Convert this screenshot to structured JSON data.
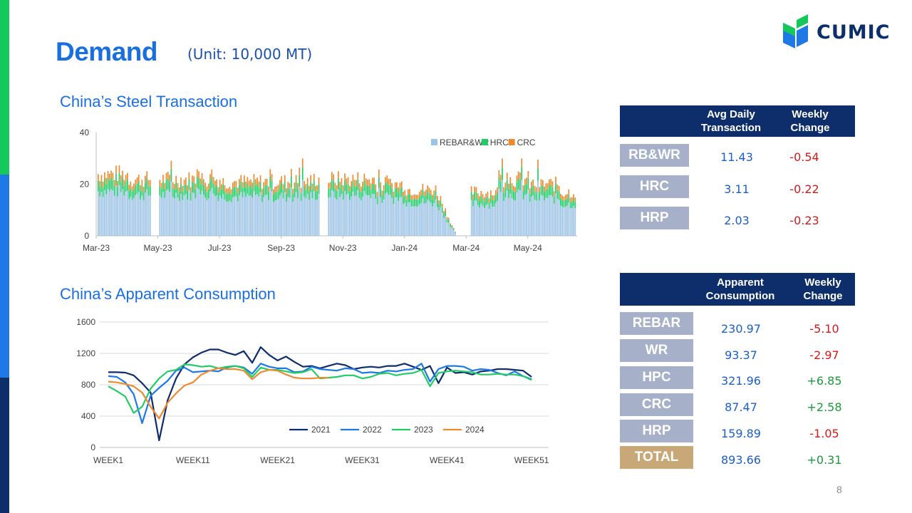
{
  "header": {
    "title": "Demand",
    "unit": "(Unit: 10,000 MT)",
    "logo_text": "CUMIC"
  },
  "colors": {
    "accent_blue": "#1a6fe0",
    "navy": "#0d2d6b",
    "green": "#14c95a",
    "label_gray": "#a6b1c9",
    "total_gold": "#c9a877",
    "negative": "#d11a1a",
    "positive": "#1a9a3c"
  },
  "page_number": "8",
  "sections": {
    "transaction_title": "China’s Steel Transaction",
    "consumption_title": "China’s Apparent Consumption"
  },
  "chart_data": [
    {
      "type": "bar",
      "stacked": true,
      "title": "China’s Steel Transaction",
      "x_tick_labels": [
        "Mar-23",
        "May-23",
        "Jul-23",
        "Sep-23",
        "Nov-23",
        "Jan-24",
        "Mar-24",
        "May-24"
      ],
      "ylim": [
        0,
        40
      ],
      "y_ticks": [
        0,
        20,
        40
      ],
      "legend": [
        "REBAR&WR",
        "HRC",
        "CRC"
      ],
      "legend_position": "top-right",
      "series": [
        {
          "name": "REBAR&WR",
          "color": "#9dc3e6",
          "description": "daily values ~12-20, falling to ~0 around Feb-24, recovering to ~11-18 from Mar-24"
        },
        {
          "name": "HRC",
          "color": "#22cc66",
          "description": "daily values ~3-6"
        },
        {
          "name": "CRC",
          "color": "#ed8b2f",
          "description": "daily values ~1-4"
        }
      ],
      "approx_daily_totals_by_month": [
        {
          "month": "Mar-23",
          "total": 24
        },
        {
          "month": "Apr-23",
          "total": 22
        },
        {
          "month": "May-23",
          "total": 22
        },
        {
          "month": "Jun-23",
          "total": 22
        },
        {
          "month": "Jul-23",
          "total": 21
        },
        {
          "month": "Aug-23",
          "total": 21
        },
        {
          "month": "Sep-23",
          "total": 21
        },
        {
          "month": "Oct-23",
          "total": 22
        },
        {
          "month": "Nov-23",
          "total": 22
        },
        {
          "month": "Dec-23",
          "total": 20
        },
        {
          "month": "Jan-24",
          "total": 18
        },
        {
          "month": "Feb-24",
          "total": 2
        },
        {
          "month": "Mar-24",
          "total": 17
        },
        {
          "month": "Apr-24",
          "total": 22
        },
        {
          "month": "May-24",
          "total": 20
        },
        {
          "month": "Jun-24",
          "total": 17
        }
      ]
    },
    {
      "type": "line",
      "title": "China’s Apparent Consumption",
      "x_tick_labels": [
        "WEEK1",
        "WEEK11",
        "WEEK21",
        "WEEK31",
        "WEEK41",
        "WEEK51"
      ],
      "ylim": [
        0,
        1600
      ],
      "y_ticks": [
        0,
        400,
        800,
        1200,
        1600
      ],
      "legend_position": "bottom-center",
      "series": [
        {
          "name": "2021",
          "color": "#0d2d6b",
          "values": [
            960,
            960,
            955,
            920,
            820,
            700,
            90,
            600,
            880,
            1060,
            1150,
            1210,
            1250,
            1250,
            1210,
            1180,
            1230,
            1080,
            1280,
            1180,
            1110,
            1160,
            1090,
            1030,
            1040,
            1010,
            1040,
            1070,
            1050,
            1000,
            1020,
            1030,
            1020,
            1040,
            1040,
            1070,
            1030,
            990,
            1040,
            820,
            1020,
            950,
            960,
            930,
            970,
            980,
            1000,
            1000,
            990,
            980,
            900
          ]
        },
        {
          "name": "2022",
          "color": "#1e78e6",
          "values": [
            910,
            900,
            830,
            680,
            310,
            660,
            760,
            850,
            980,
            1020,
            960,
            970,
            980,
            970,
            1020,
            1040,
            1020,
            940,
            1070,
            1030,
            1010,
            1010,
            960,
            970,
            1030,
            1000,
            990,
            980,
            1010,
            1000,
            950,
            960,
            950,
            980,
            970,
            990,
            1000,
            1070,
            840,
            1000,
            1040,
            1040,
            1030,
            980,
            1000,
            990,
            950,
            920,
            970,
            910,
            870
          ]
        },
        {
          "name": "2023",
          "color": "#22cc66",
          "values": [
            780,
            720,
            650,
            440,
            520,
            750,
            880,
            970,
            990,
            1060,
            1050,
            1030,
            1040,
            1010,
            1030,
            1040,
            1010,
            900,
            1020,
            990,
            990,
            970,
            950,
            960,
            1000,
            880,
            890,
            900,
            920,
            920,
            880,
            900,
            940,
            950,
            920,
            940,
            950,
            990,
            780,
            950,
            970,
            980,
            970,
            960,
            930,
            930,
            940,
            930,
            930,
            910,
            860
          ]
        },
        {
          "name": "2024",
          "color": "#ed8b2f",
          "values": [
            840,
            830,
            810,
            780,
            700,
            520,
            370,
            570,
            690,
            790,
            830,
            930,
            980,
            1010,
            1000,
            1000,
            980,
            870,
            960,
            990,
            980,
            930,
            890,
            880,
            880,
            890,
            890
          ]
        }
      ]
    }
  ],
  "transaction_table": {
    "headers": [
      "Avg Daily Transaction",
      "Weekly Change"
    ],
    "rows": [
      {
        "label": "RB&WR",
        "value": "11.43",
        "change": "-0.54"
      },
      {
        "label": "HRC",
        "value": "3.11",
        "change": "-0.22"
      },
      {
        "label": "HRP",
        "value": "2.03",
        "change": "-0.23"
      }
    ]
  },
  "consumption_table": {
    "headers": [
      "Apparent Consumption",
      "Weekly Change"
    ],
    "rows": [
      {
        "label": "REBAR",
        "value": "230.97",
        "change": "-5.10"
      },
      {
        "label": "WR",
        "value": "93.37",
        "change": "-2.97"
      },
      {
        "label": "HPC",
        "value": "321.96",
        "change": "+6.85"
      },
      {
        "label": "CRC",
        "value": "87.47",
        "change": "+2.58"
      },
      {
        "label": "HRP",
        "value": "159.89",
        "change": "-1.05"
      },
      {
        "label": "TOTAL",
        "value": "893.66",
        "change": "+0.31"
      }
    ]
  }
}
